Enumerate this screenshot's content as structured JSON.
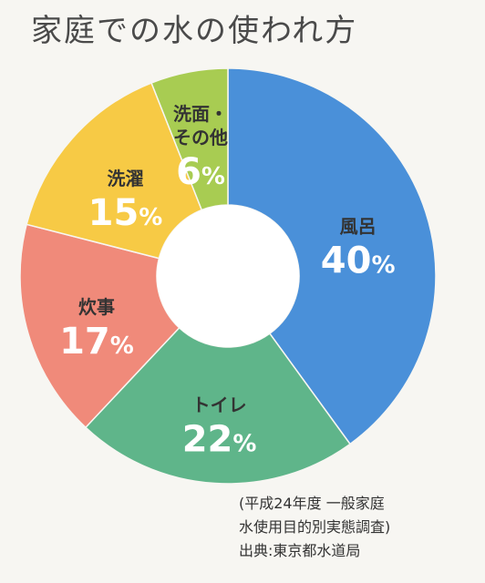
{
  "chart_data": {
    "type": "pie",
    "title": "家庭での水の使われ方",
    "slices": [
      {
        "label": "風呂",
        "label_lines": [
          "風呂"
        ],
        "value": 40,
        "value_label": "40%",
        "color": "#4a90d9"
      },
      {
        "label": "トイレ",
        "label_lines": [
          "トイレ"
        ],
        "value": 22,
        "value_label": "22%",
        "color": "#5fb58a"
      },
      {
        "label": "炊事",
        "label_lines": [
          "炊事"
        ],
        "value": 17,
        "value_label": "17%",
        "color": "#f08a7a"
      },
      {
        "label": "洗濯",
        "label_lines": [
          "洗濯"
        ],
        "value": 15,
        "value_label": "15%",
        "color": "#f7ca45"
      },
      {
        "label": "洗面・その他",
        "label_lines": [
          "洗面・",
          "その他"
        ],
        "value": 6,
        "value_label": "6%",
        "color": "#a8cc52"
      }
    ],
    "start_slice": "風呂",
    "direction": "clockwise",
    "donut": true
  },
  "source_note": {
    "line1": "(平成24年度 一般家庭",
    "line2": "水使用目的別実態調査)",
    "line3": "出典:東京都水道局"
  }
}
